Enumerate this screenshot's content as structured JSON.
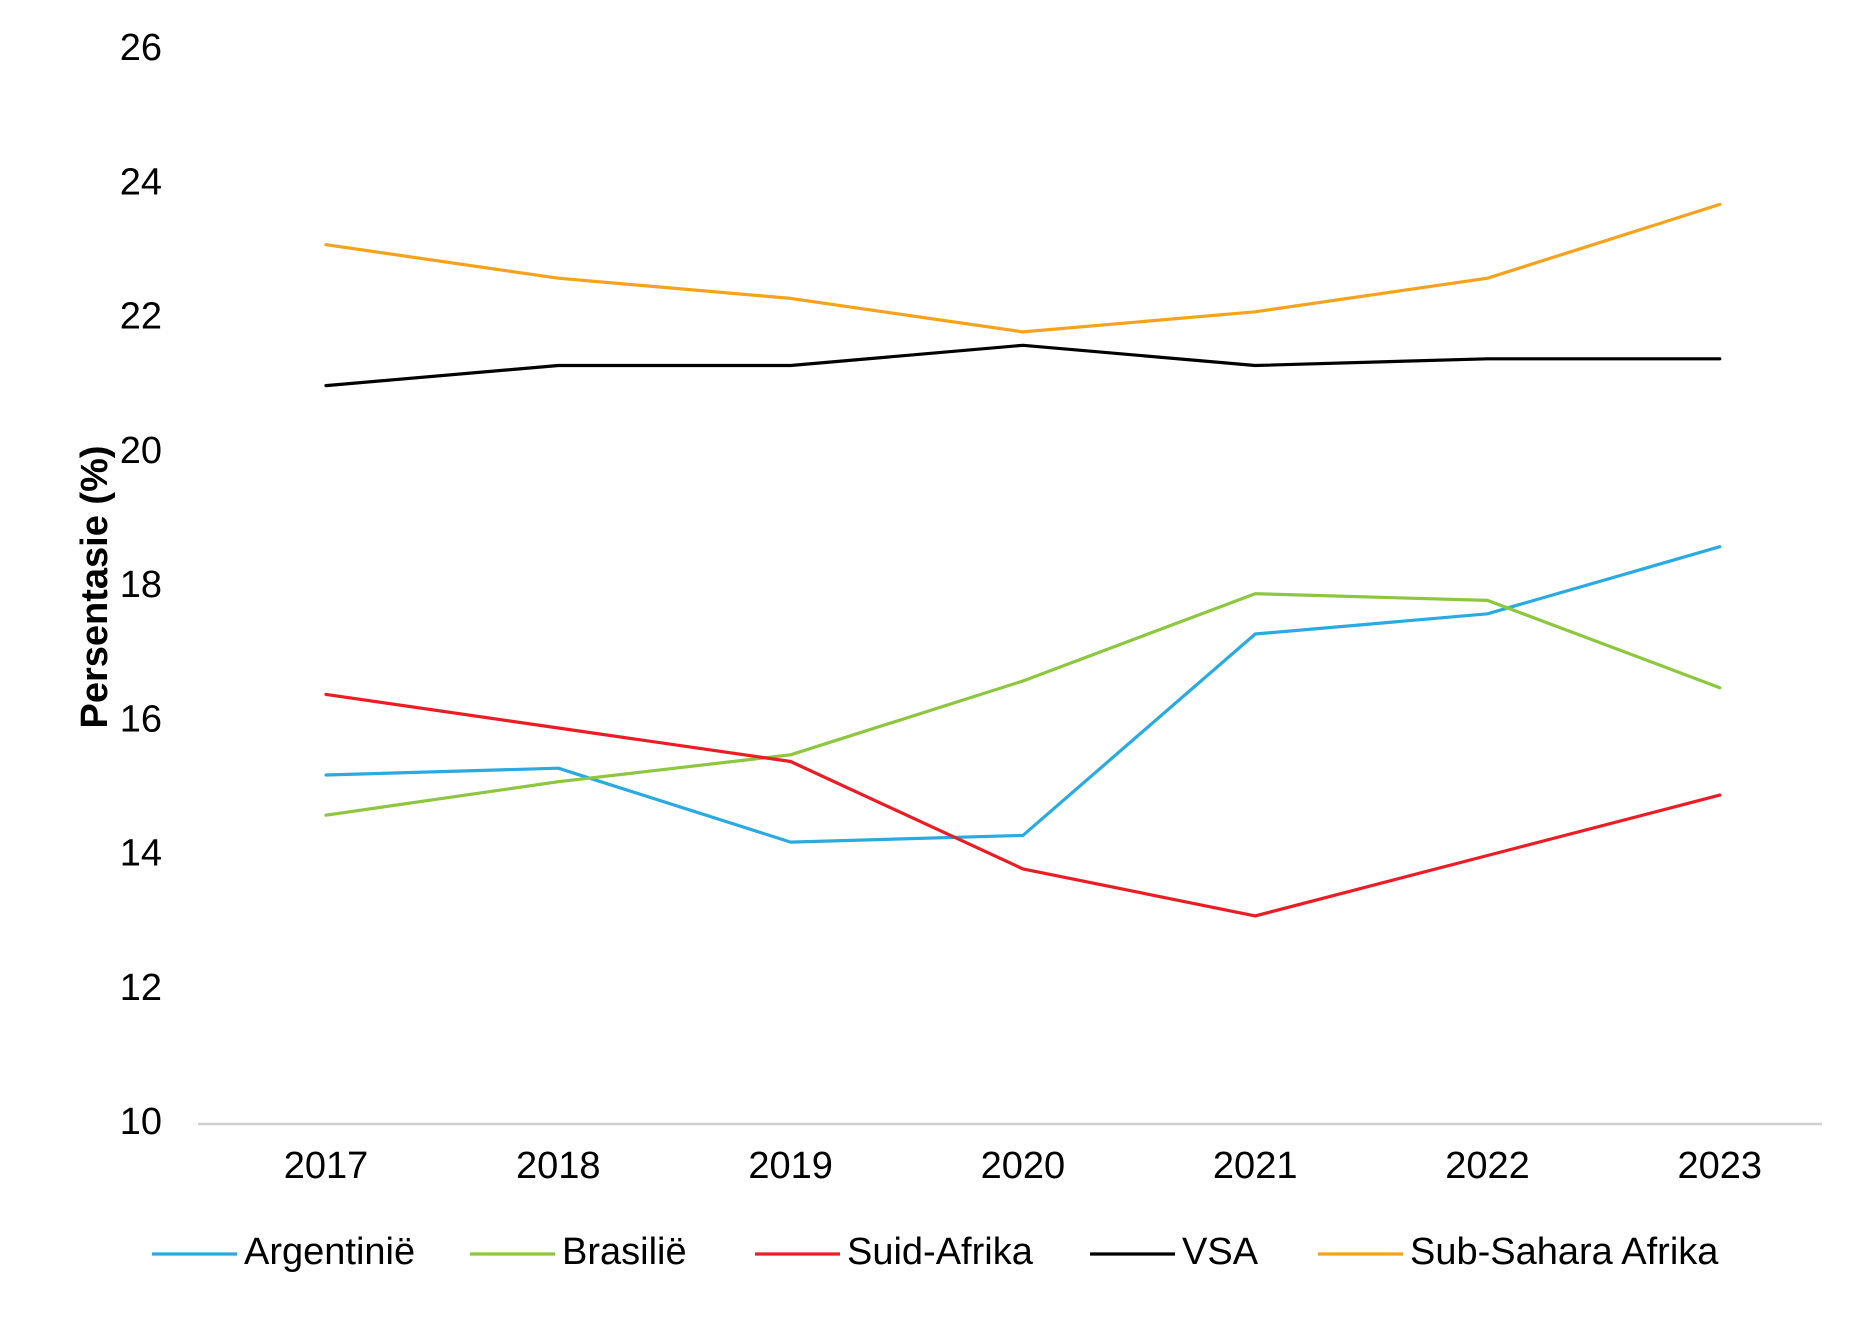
{
  "chart_data": {
    "type": "line",
    "title": "",
    "xlabel": "",
    "ylabel": "Persentasie (%)",
    "categories": [
      "2017",
      "2018",
      "2019",
      "2020",
      "2021",
      "2022",
      "2023"
    ],
    "ylim": [
      10,
      26
    ],
    "yticks": [
      "10",
      "12",
      "14",
      "16",
      "18",
      "20",
      "22",
      "24",
      "26"
    ],
    "grid": false,
    "legend_position": "bottom",
    "series": [
      {
        "name": "Argentinië",
        "color": "#29abe2",
        "values": [
          15.2,
          15.3,
          14.2,
          14.3,
          17.3,
          17.6,
          18.6
        ]
      },
      {
        "name": "Brasilië",
        "color": "#8dc63f",
        "values": [
          14.6,
          15.1,
          15.5,
          16.6,
          17.9,
          17.8,
          16.5
        ]
      },
      {
        "name": "Suid-Afrika",
        "color": "#ed1c24",
        "values": [
          16.4,
          15.9,
          15.4,
          13.8,
          13.1,
          14.0,
          14.9
        ]
      },
      {
        "name": "VSA",
        "color": "#000000",
        "values": [
          21.0,
          21.3,
          21.3,
          21.6,
          21.3,
          21.4,
          21.4
        ]
      },
      {
        "name": "Sub-Sahara Afrika",
        "color": "#f7a21b",
        "values": [
          23.1,
          22.6,
          22.3,
          21.8,
          22.1,
          22.6,
          23.7
        ]
      }
    ]
  }
}
